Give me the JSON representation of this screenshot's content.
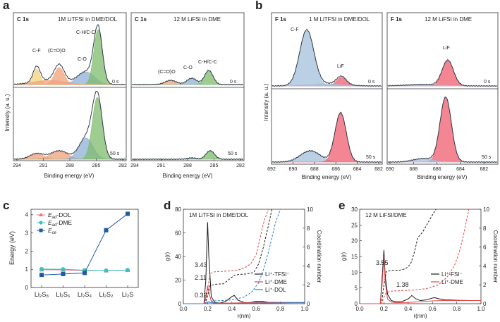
{
  "panels": {
    "a": {
      "letter": "a",
      "x_label": "Binding energy (eV)",
      "y_label": "Intensity (a. u.)",
      "x_ticks": [
        294,
        291,
        288,
        285,
        282
      ],
      "subplots": [
        {
          "element": "C 1s",
          "title": "1M LiTFSI in DME/DOL",
          "time_top": "0 s",
          "time_bottom": "50 s",
          "peaks": [
            "C-H/C-C",
            "C-F",
            "(C=O)O",
            "C-O"
          ]
        },
        {
          "element": "C 1s",
          "title": "12 M LiFSI in DME",
          "time_top": "0 s",
          "time_bottom": "50 s",
          "peaks": [
            "C-H/C-C",
            "(C=O)O",
            "C-O"
          ]
        }
      ]
    },
    "b": {
      "letter": "b",
      "x_label": "Binding energy (eV)",
      "y_label": "Intensity (a. u.)",
      "x_ticks": [
        692,
        690,
        688,
        686,
        684,
        682
      ],
      "x_ticks_right": [
        690,
        688,
        686,
        684,
        682
      ],
      "subplots": [
        {
          "element": "F 1s",
          "title": "1 M LiTFSI in DME/DOL",
          "time_top": "0 s",
          "time_bottom": "50 s",
          "peaks": [
            "C-F",
            "LiF"
          ]
        },
        {
          "element": "F 1s",
          "title": "12 M LiFSI in DME",
          "time_top": "0 s",
          "time_bottom": "50 s",
          "peaks": [
            "LiF"
          ]
        }
      ]
    },
    "c": {
      "letter": "c"
    },
    "d": {
      "letter": "d",
      "inset_title": "1M LiTFSI in DME/DOL"
    },
    "e": {
      "letter": "e",
      "inset_title": "12 M LiFSI/DME"
    }
  },
  "colors": {
    "green": "#7dbb6c",
    "blue": "#8fb0d6",
    "orange": "#f0a27a",
    "yellow": "#f2d27a",
    "red": "#ef5d6d",
    "steel": "#a4bfdc",
    "envelope": "#2f3a44",
    "c_dol": "#f07080",
    "c_dme": "#3cc0c0",
    "c_ce": "#1e5aa0"
  },
  "chart_data": [
    {
      "panel": "c",
      "type": "line",
      "title": "",
      "xlabel": "",
      "ylabel": "Energy (eV)",
      "categories": [
        "Li₂S₈",
        "Li₂S₆",
        "Li₂S₄",
        "Li₂S₂",
        "Li₂S"
      ],
      "ylim": [
        0,
        4.3
      ],
      "yticks": [
        0,
        1,
        2,
        3,
        4
      ],
      "series": [
        {
          "name": "E_ad-DOL",
          "legend_main": "E",
          "legend_sub": "ad",
          "legend_suffix": "-DOL",
          "marker": "triangle",
          "values": [
            0.98,
            0.97,
            0.93,
            0.93,
            0.95
          ]
        },
        {
          "name": "E_ad-DME",
          "legend_main": "E",
          "legend_sub": "ad",
          "legend_suffix": "-DME",
          "marker": "circle",
          "values": [
            1.01,
            1.0,
            0.95,
            0.93,
            0.96
          ]
        },
        {
          "name": "E_ce",
          "legend_main": "E",
          "legend_sub": "ce",
          "legend_suffix": "",
          "marker": "square",
          "values": [
            0.69,
            0.74,
            0.8,
            3.15,
            4.05
          ]
        }
      ]
    },
    {
      "panel": "d",
      "type": "line",
      "title": "1M LiTFSI in DME/DOL",
      "xlabel": "r(nm)",
      "ylabel": "g(r)",
      "ylabel_right": "Coordination number",
      "xlim": [
        0,
        1.0
      ],
      "xticks": [
        0.0,
        0.2,
        0.4,
        0.6,
        0.8,
        1.0
      ],
      "ylim": [
        0,
        80
      ],
      "yticks": [
        0,
        20,
        40,
        60,
        80
      ],
      "ylim_right": [
        0,
        10
      ],
      "yticks_right": [
        0,
        2,
        4,
        6,
        8,
        10
      ],
      "series": [
        {
          "name": "Li⁺-TFSI⁻",
          "g_r": {
            "x": [
              0,
              0.17,
              0.185,
              0.2,
              0.21,
              0.23,
              0.26,
              0.3,
              0.35,
              0.4,
              0.42,
              0.45,
              0.5,
              0.55,
              0.6,
              0.65,
              0.7,
              0.8,
              0.9,
              1.0
            ],
            "y": [
              0,
              0,
              20,
              69,
              40,
              6,
              1,
              0.5,
              2,
              6,
              7,
              3,
              1,
              1,
              2,
              2,
              1.2,
              1,
              1,
              1
            ]
          },
          "cn": {
            "x": [
              0,
              0.18,
              0.2,
              0.22,
              0.26,
              0.33,
              0.38,
              0.42,
              0.46,
              0.52,
              0.58,
              0.62,
              0.66,
              0.7,
              0.73
            ],
            "y": [
              0,
              0,
              0.8,
              1.9,
              2.05,
              2.11,
              2.6,
              3.0,
              3.1,
              3.15,
              3.3,
              4.2,
              6.0,
              8.2,
              10
            ]
          }
        },
        {
          "name": "Li⁺-DME",
          "g_r": {
            "x": [
              0,
              0.17,
              0.185,
              0.2,
              0.21,
              0.23,
              0.26,
              0.3,
              0.35,
              0.4,
              0.45,
              0.5,
              0.55,
              0.6,
              0.65,
              0.7,
              0.8,
              0.9,
              1.0
            ],
            "y": [
              0,
              0,
              5,
              15,
              10,
              2,
              0.5,
              0.5,
              0.5,
              0.5,
              0.7,
              0.8,
              1,
              1.2,
              1.3,
              1.2,
              1,
              1,
              1
            ]
          },
          "cn": {
            "x": [
              0,
              0.18,
              0.2,
              0.22,
              0.26,
              0.33,
              0.4,
              0.46,
              0.52,
              0.56,
              0.6,
              0.63,
              0.66,
              0.7
            ],
            "y": [
              0,
              0,
              1.5,
              3.2,
              3.38,
              3.43,
              3.48,
              3.6,
              3.9,
              4.3,
              5.2,
              6.8,
              8.5,
              10
            ]
          }
        },
        {
          "name": "Li⁺-DOL",
          "g_r": {
            "x": [
              0,
              0.17,
              0.2,
              0.23,
              0.3,
              0.4,
              0.5,
              0.6,
              0.7,
              0.8,
              0.9,
              1.0
            ],
            "y": [
              0,
              0,
              1.5,
              0.8,
              0.3,
              0.3,
              0.4,
              0.5,
              0.6,
              0.7,
              0.8,
              0.8
            ]
          },
          "cn": {
            "x": [
              0,
              0.18,
              0.22,
              0.3,
              0.4,
              0.5,
              0.56,
              0.62,
              0.66,
              0.7,
              0.73,
              0.76,
              0.8
            ],
            "y": [
              0,
              0,
              0.28,
              0.32,
              0.4,
              0.7,
              1.2,
              2.2,
              3.6,
              5.4,
              7.0,
              8.6,
              10
            ]
          }
        }
      ],
      "annotations": [
        "3.43",
        "2.11",
        "0.32"
      ]
    },
    {
      "panel": "e",
      "type": "line",
      "title": "12 M LiFSI/DME",
      "xlabel": "r(nm)",
      "ylabel": "g(r)",
      "ylabel_right": "Coordination number",
      "xlim": [
        0,
        1.0
      ],
      "xticks": [
        0.0,
        0.2,
        0.4,
        0.6,
        0.8,
        1.0
      ],
      "ylim": [
        0,
        30
      ],
      "yticks": [
        0,
        5,
        10,
        15,
        20,
        25,
        30
      ],
      "ylim_right": [
        0,
        10
      ],
      "yticks_right": [
        0,
        2,
        4,
        6,
        8,
        10
      ],
      "series": [
        {
          "name": "Li⁺-FSI⁻",
          "g_r": {
            "x": [
              0,
              0.17,
              0.185,
              0.2,
              0.21,
              0.23,
              0.26,
              0.3,
              0.35,
              0.4,
              0.43,
              0.46,
              0.5,
              0.55,
              0.6,
              0.62,
              0.65,
              0.7,
              0.8,
              0.9,
              1.0
            ],
            "y": [
              0,
              0,
              8,
              17,
              9,
              3,
              1,
              0.6,
              0.7,
              1.5,
              2.6,
              1.6,
              1,
              1.2,
              1.8,
              1.9,
              1.6,
              1.2,
              1.1,
              1,
              1
            ]
          },
          "cn": {
            "x": [
              0,
              0.18,
              0.2,
              0.22,
              0.26,
              0.33,
              0.38,
              0.42,
              0.45,
              0.48,
              0.52,
              0.56,
              0.6,
              0.63
            ],
            "y": [
              0,
              0,
              2,
              3.4,
              3.52,
              3.55,
              3.7,
              4.2,
              5.4,
              7.0,
              7.6,
              8.5,
              9.4,
              10
            ]
          }
        },
        {
          "name": "Li⁺-DME",
          "g_r": {
            "x": [
              0,
              0.17,
              0.185,
              0.2,
              0.21,
              0.23,
              0.26,
              0.3,
              0.4,
              0.5,
              0.6,
              0.7,
              0.8,
              0.9,
              1.0
            ],
            "y": [
              0,
              0,
              6,
              15,
              7,
              1.5,
              0.5,
              0.3,
              0.4,
              0.6,
              0.9,
              1,
              1,
              1,
              1
            ]
          },
          "cn": {
            "x": [
              0,
              0.18,
              0.2,
              0.22,
              0.26,
              0.35,
              0.45,
              0.55,
              0.65,
              0.72,
              0.78,
              0.82,
              0.86,
              0.9
            ],
            "y": [
              0,
              0,
              0.7,
              1.2,
              1.33,
              1.38,
              1.45,
              1.6,
              2.0,
              2.8,
              4.0,
              5.4,
              7.5,
              10
            ]
          }
        }
      ],
      "annotations": [
        "3.55",
        "1.38"
      ]
    }
  ]
}
